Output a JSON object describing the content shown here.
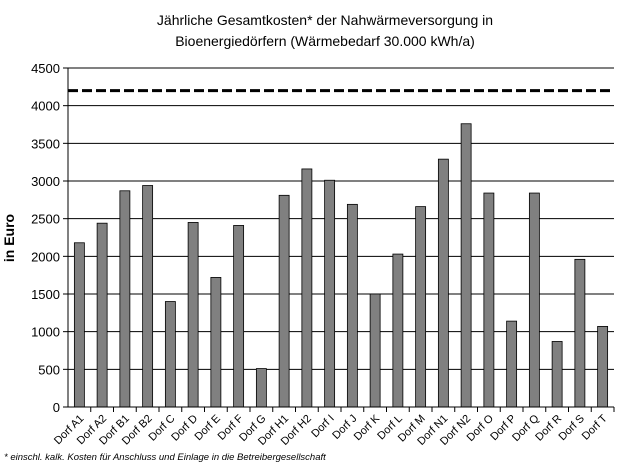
{
  "chart_data": {
    "type": "bar",
    "title_line1": "Jährliche Gesamtkosten* der Nahwärmeversorgung in",
    "title_line2": "Bioenergiedörfern (Wärmebedarf 30.000 kWh/a)",
    "ylabel": "in Euro",
    "xlabel": "",
    "ylim": [
      0,
      4500
    ],
    "yticks": [
      "0",
      "500",
      "1000",
      "1500",
      "2000",
      "2500",
      "3000",
      "3500",
      "4000",
      "4500"
    ],
    "grid": true,
    "reference_line": 4200,
    "bar_color": "#808080",
    "categories": [
      "Dorf A1",
      "Dorf A2",
      "Dorf B1",
      "Dorf B2",
      "Dorf C",
      "Dorf D",
      "Dorf E",
      "Dorf F",
      "Dorf G",
      "Dorf H1",
      "Dorf H2",
      "Dorf I",
      "Dorf J",
      "Dorf K",
      "Dorf L",
      "Dorf M",
      "Dorf N1",
      "Dorf N2",
      "Dorf O",
      "Dorf P",
      "Dorf Q",
      "Dorf R",
      "Dorf S",
      "Dorf T"
    ],
    "values": [
      2180,
      2440,
      2870,
      2940,
      1400,
      2450,
      1720,
      2410,
      510,
      2810,
      3160,
      3010,
      2690,
      1500,
      2030,
      2660,
      3290,
      3760,
      2840,
      1140,
      2840,
      870,
      1960,
      1070
    ],
    "footnote": "* einschl. kalk. Kosten für Anschluss und Einlage in die Betreibergesellschaft"
  }
}
